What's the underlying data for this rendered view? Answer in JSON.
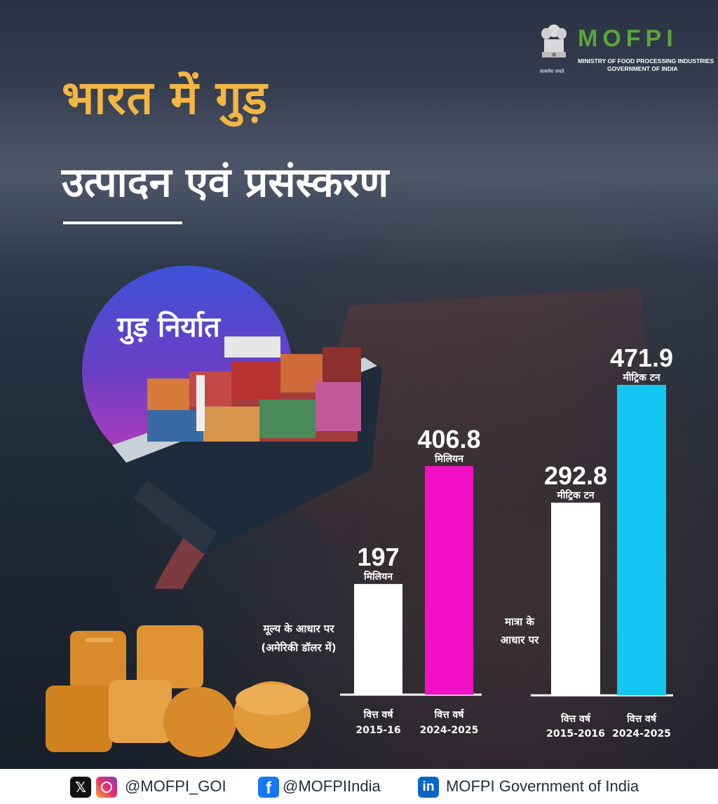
{
  "header": {
    "title_line1": "भारत में गुड़",
    "title_line2": "उत्पादन एवं प्रसंस्करण"
  },
  "logo": {
    "wordmark": "MOFPI",
    "sub_line1": "MINISTRY OF FOOD PROCESSING INDUSTRIES",
    "sub_line2": "GOVERNMENT OF INDIA",
    "motto": "सत्यमेव जयते"
  },
  "badge": {
    "label": "गुड़ निर्यात"
  },
  "colors": {
    "title_accent": "#f4b642",
    "bar_white": "#ffffff",
    "bar_magenta": "#f20fc6",
    "bar_cyan": "#16c6f2",
    "logo_green": "#5aa538"
  },
  "chart_data": [
    {
      "type": "bar",
      "side_label": [
        "मूल्य के आधार पर",
        "(अमेरिकी डॉलर में)"
      ],
      "categories": [
        [
          "वित्त वर्ष",
          "2015-16"
        ],
        [
          "वित्त वर्ष",
          "2024-2025"
        ]
      ],
      "values": [
        197,
        406.8
      ],
      "value_labels": [
        "197",
        "406.8"
      ],
      "unit_labels": [
        "मिलियन",
        "मिलियन"
      ],
      "bar_colors": [
        "#ffffff",
        "#f20fc6"
      ],
      "ylim": [
        0,
        406.8
      ]
    },
    {
      "type": "bar",
      "side_label": [
        "मात्रा के",
        "आधार पर"
      ],
      "categories": [
        [
          "वित्त वर्ष",
          "2015-2016"
        ],
        [
          "वित्त वर्ष",
          "2024-2025"
        ]
      ],
      "values": [
        292.8,
        471.9
      ],
      "value_labels": [
        "292.8",
        "471.9"
      ],
      "unit_labels": [
        "मीट्रिक टन",
        "मीट्रिक टन"
      ],
      "bar_colors": [
        "#ffffff",
        "#16c6f2"
      ],
      "ylim": [
        0,
        471.9
      ]
    }
  ],
  "footer": {
    "x_icon": "x-logo-icon",
    "instagram_icon": "instagram-icon",
    "handle1": "@MOFPI_GOI",
    "facebook_icon": "facebook-icon",
    "handle2": "@MOFPIIndia",
    "linkedin_icon": "linkedin-icon",
    "handle3": "MOFPI Government of India"
  }
}
